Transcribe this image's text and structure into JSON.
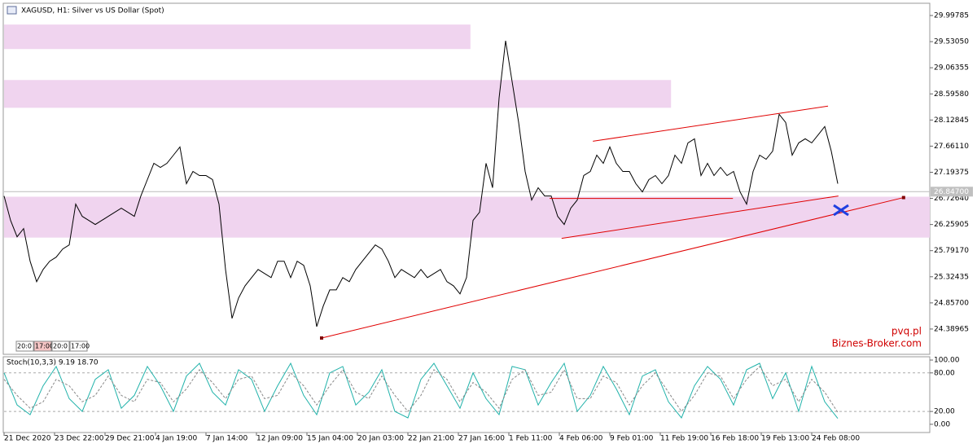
{
  "chart_data": [
    {
      "type": "line",
      "title": "XAGUSD, H1:  Silver vs US Dollar (Spot)",
      "xlim": [
        0,
        142.125
      ],
      "ylim": [
        23.937,
        30.217
      ],
      "yticks": [
        29.99785,
        {
          "value": 29.5305,
          "label": "29.53050"
        },
        29.06355,
        {
          "value": 28.5958,
          "label": "28.59580"
        },
        28.12845,
        {
          "value": 27.6611,
          "label": "27.66110"
        },
        27.19375,
        {
          "value": 26.7264,
          "label": "26.72640"
        },
        26.25905,
        {
          "value": 25.7917,
          "label": "25.79170"
        },
        25.32435,
        {
          "value": 24.857,
          "label": "24.85700"
        },
        24.38965
      ],
      "xticks": [
        {
          "value": 0,
          "label": "21 Dec 2020"
        },
        {
          "value": 7.75,
          "label": "23 Dec 22:00"
        },
        {
          "value": 15.5,
          "label": "29 Dec 21:00"
        },
        {
          "value": 23.25,
          "label": "4 Jan 19:00"
        },
        {
          "value": 31,
          "label": "7 Jan 14:00"
        },
        {
          "value": 38.75,
          "label": "12 Jan 09:00"
        },
        {
          "value": 46.5,
          "label": "15 Jan 04:00"
        },
        {
          "value": 54.25,
          "label": "20 Jan 03:00"
        },
        {
          "value": 62,
          "label": "22 Jan 21:00"
        },
        {
          "value": 69.75,
          "label": "27 Jan 16:00"
        },
        {
          "value": 77.5,
          "label": "1 Feb 11:00"
        },
        {
          "value": 85.25,
          "label": "4 Feb 06:00"
        },
        {
          "value": 93,
          "label": "9 Feb 01:00"
        },
        {
          "value": 100.75,
          "label": "11 Feb 19:00"
        },
        {
          "value": 108.5,
          "label": "16 Feb 18:00"
        },
        {
          "value": 116.25,
          "label": "19 Feb 13:00"
        },
        {
          "value": 124,
          "label": "24 Feb 08:00"
        }
      ],
      "series": [
        {
          "color": "#000000",
          "values": [
            26.77,
            26.332,
            26.04,
            26.186,
            25.602,
            25.237,
            25.456,
            25.602,
            25.675,
            25.821,
            25.894,
            26.624,
            26.405,
            26.332,
            26.259,
            26.332,
            26.405,
            26.478,
            26.551,
            26.478,
            26.405,
            26.77,
            27.062,
            27.354,
            27.281,
            27.354,
            27.5,
            27.646,
            26.989,
            27.208,
            27.135,
            27.135,
            27.062,
            26.624,
            25.456,
            24.579,
            24.944,
            25.163,
            25.309,
            25.456,
            25.383,
            25.309,
            25.602,
            25.602,
            25.309,
            25.602,
            25.529,
            25.163,
            24.433,
            24.799,
            25.09,
            25.09,
            25.309,
            25.237,
            25.456,
            25.602,
            25.748,
            25.894,
            25.821,
            25.602,
            25.309,
            25.456,
            25.383,
            25.309,
            25.456,
            25.309,
            25.383,
            25.456,
            25.237,
            25.163,
            25.018,
            25.309,
            26.332,
            26.478,
            27.354,
            26.916,
            28.523,
            29.545,
            28.815,
            28.085,
            27.208,
            26.697,
            26.916,
            26.77,
            26.77,
            26.405,
            26.259,
            26.551,
            26.697,
            27.135,
            27.208,
            27.5,
            27.354,
            27.646,
            27.354,
            27.208,
            27.208,
            26.989,
            26.843,
            27.062,
            27.135,
            26.989,
            27.135,
            27.5,
            27.354,
            27.72,
            27.793,
            27.135,
            27.354,
            27.135,
            27.281,
            27.135,
            27.208,
            26.843,
            26.624,
            27.208,
            27.5,
            27.427,
            27.573,
            28.231,
            28.085,
            27.5,
            27.72,
            27.793,
            27.72,
            27.866,
            28.012,
            27.573,
            26.989
          ]
        }
      ],
      "current_price": {
        "value": 26.847,
        "label": "26.84700"
      },
      "zones": [
        {
          "x0": 0,
          "x1": 71.6,
          "from": 29.398,
          "to": 29.836,
          "color": "#f0d4ef"
        },
        {
          "x0": 0,
          "x1": 102.4,
          "from": 28.347,
          "to": 28.844,
          "color": "#f0d4ef"
        },
        {
          "x0": 0,
          "x1": 142.125,
          "from": 26.025,
          "to": 26.756,
          "color": "#f0d4ef"
        }
      ],
      "trendlines": [
        {
          "x": [
            48.75,
            138.1
          ],
          "y": [
            24.229,
            26.741
          ],
          "color": "#e00000"
        },
        {
          "x": [
            85.6,
            128.1
          ],
          "y": [
            26.011,
            26.77
          ],
          "color": "#e00000"
        },
        {
          "x": [
            90.4,
            126.5
          ],
          "y": [
            27.749,
            28.377
          ],
          "color": "#e00000"
        },
        {
          "x": [
            83.75,
            111.9
          ],
          "y": [
            26.726,
            26.726
          ],
          "color": "#e00000"
        }
      ],
      "time_boxes": [
        "20:0",
        "17:00",
        "20:0",
        "17:00"
      ],
      "annotations": [
        "pvq.pl",
        "Biznes-Broker.com"
      ]
    },
    {
      "type": "line",
      "title": "Stoch(10,3,3) 9.19 18.70",
      "xlim": [
        0,
        71.06
      ],
      "ylim": [
        -12.8,
        105.1
      ],
      "yticks": [
        {
          "value": 100,
          "label": "100.00"
        },
        {
          "value": 80,
          "label": "80.00"
        },
        {
          "value": 20,
          "label": "20.00"
        },
        {
          "value": 0,
          "label": "0.00"
        }
      ],
      "levels": [
        80,
        20
      ],
      "series": [
        {
          "color": "#20b2aa",
          "values": [
            80,
            30,
            15,
            60,
            90,
            40,
            20,
            70,
            85,
            25,
            45,
            90,
            60,
            20,
            75,
            95,
            50,
            30,
            85,
            70,
            20,
            60,
            95,
            45,
            15,
            80,
            90,
            30,
            50,
            85,
            20,
            10,
            70,
            95,
            60,
            25,
            80,
            40,
            15,
            90,
            85,
            30,
            65,
            95,
            20,
            45,
            90,
            55,
            15,
            75,
            85,
            35,
            10,
            60,
            90,
            70,
            30,
            85,
            95,
            40,
            80,
            20,
            90,
            35,
            9.19
          ]
        },
        {
          "color": "#888888",
          "dashed": true,
          "values": [
            70,
            45,
            25,
            35,
            70,
            60,
            35,
            45,
            75,
            45,
            35,
            70,
            65,
            35,
            55,
            85,
            65,
            40,
            70,
            75,
            40,
            45,
            80,
            60,
            30,
            60,
            85,
            50,
            40,
            75,
            45,
            20,
            45,
            85,
            70,
            35,
            65,
            50,
            25,
            70,
            85,
            45,
            50,
            85,
            40,
            40,
            75,
            65,
            30,
            60,
            80,
            50,
            20,
            45,
            80,
            75,
            40,
            70,
            90,
            60,
            70,
            35,
            70,
            50,
            18.7
          ]
        }
      ]
    }
  ]
}
